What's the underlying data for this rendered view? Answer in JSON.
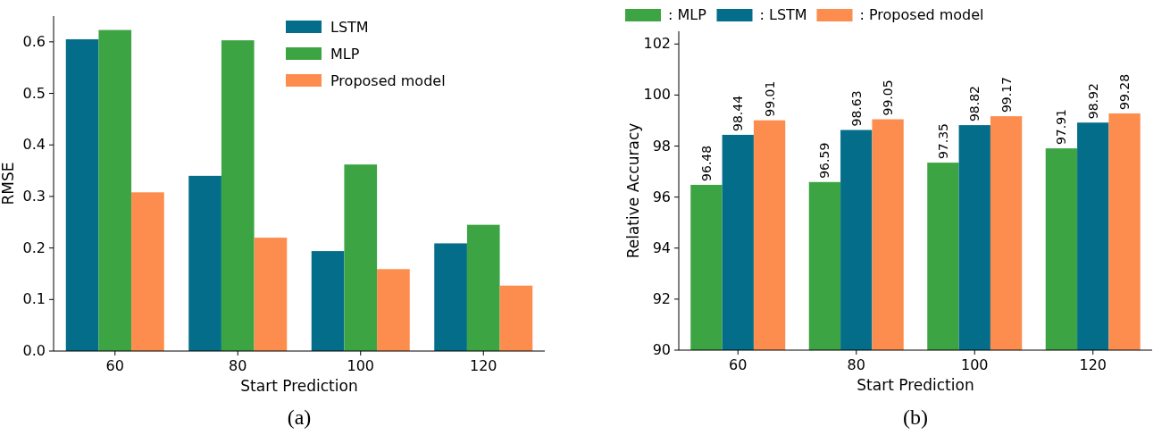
{
  "chart_data": [
    {
      "type": "bar",
      "xlabel": "Start Prediction",
      "ylabel": "RMSE",
      "categories": [
        "60",
        "80",
        "100",
        "120"
      ],
      "series": [
        {
          "name": "LSTM",
          "color": "#046e8a",
          "values": [
            0.605,
            0.34,
            0.194,
            0.209
          ]
        },
        {
          "name": "MLP",
          "color": "#3da443",
          "values": [
            0.623,
            0.603,
            0.362,
            0.245
          ]
        },
        {
          "name": "Proposed model",
          "color": "#fd8d4e",
          "values": [
            0.308,
            0.22,
            0.159,
            0.127
          ]
        }
      ],
      "ylim": [
        0,
        0.65
      ],
      "yticks": [
        {
          "value": 0,
          "label": "0.0"
        },
        {
          "value": 0.1,
          "label": "0.1"
        },
        {
          "value": 0.2,
          "label": "0.2"
        },
        {
          "value": 0.3,
          "label": "0.3"
        },
        {
          "value": 0.4,
          "label": "0.4"
        },
        {
          "value": 0.5,
          "label": "0.5"
        },
        {
          "value": 0.6,
          "label": "0.6"
        }
      ],
      "grid": false,
      "legend": "top right",
      "annotations": [
        "(a)"
      ]
    },
    {
      "type": "bar",
      "xlabel": "Start Prediction",
      "ylabel": "Relative Accuracy",
      "categories": [
        "60",
        "80",
        "100",
        "120"
      ],
      "series": [
        {
          "name": ": MLP",
          "color": "#3da443",
          "values": [
            96.48,
            96.59,
            97.35,
            97.91
          ]
        },
        {
          "name": ": LSTM",
          "color": "#046e8a",
          "values": [
            98.44,
            98.63,
            98.82,
            98.92
          ]
        },
        {
          "name": ": Proposed model",
          "color": "#fd8d4e",
          "values": [
            99.01,
            99.05,
            99.17,
            99.28
          ]
        }
      ],
      "ylim": [
        90,
        102.5
      ],
      "yticks": [
        90,
        92,
        94,
        96,
        98,
        100,
        102
      ],
      "grid": false,
      "legend": "top",
      "data_labels": true,
      "annotations": [
        "(b)"
      ]
    }
  ]
}
